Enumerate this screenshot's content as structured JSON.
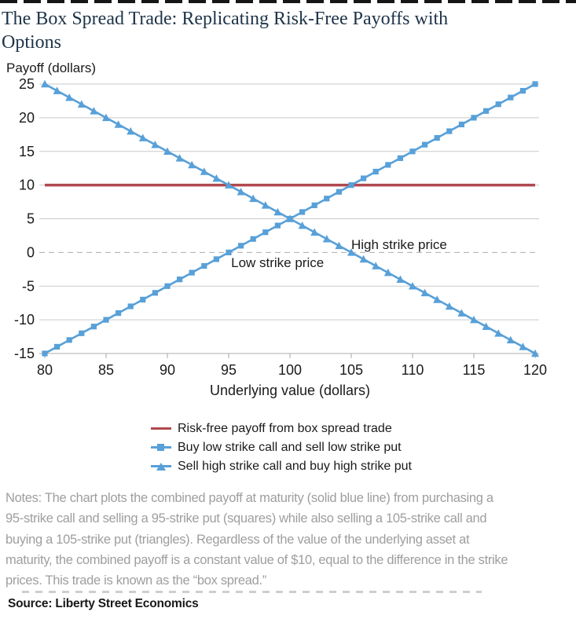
{
  "page": {
    "title_lines": [
      "The Box Spread Trade: Replicating Risk-Free Payoffs with",
      "Options"
    ]
  },
  "colors": {
    "risk_free_red": "#B0494E",
    "series_blue": "#58A0D8",
    "title_navy": "#1D3348",
    "notes_gray": "#9E9E9E",
    "grid_gray": "#C9C9C9",
    "zero_dash_gray": "#ADADAD"
  },
  "chart_data": {
    "type": "line",
    "title": "",
    "ylabel": "Payoff (dollars)",
    "xlabel": "Underlying value (dollars)",
    "xlim": [
      80,
      120
    ],
    "ylim": [
      -15,
      25
    ],
    "xticks": [
      80,
      85,
      90,
      95,
      100,
      105,
      110,
      115,
      120
    ],
    "yticks": [
      25,
      20,
      15,
      10,
      5,
      0,
      -5,
      -10,
      -15
    ],
    "grid": "horizontal gridlines; zero line dashed",
    "legend_position": "bottom",
    "x": [
      80,
      81,
      82,
      83,
      84,
      85,
      86,
      87,
      88,
      89,
      90,
      91,
      92,
      93,
      94,
      95,
      96,
      97,
      98,
      99,
      100,
      101,
      102,
      103,
      104,
      105,
      106,
      107,
      108,
      109,
      110,
      111,
      112,
      113,
      114,
      115,
      116,
      117,
      118,
      119,
      120
    ],
    "series": [
      {
        "name": "Risk-free payoff from box spread trade",
        "type": "hline",
        "value": 10,
        "color": "#B0494E"
      },
      {
        "name": "Buy low strike call and sell low strike put",
        "type": "line",
        "marker": "square",
        "color": "#58A0D8",
        "values": [
          -15,
          -14,
          -13,
          -12,
          -11,
          -10,
          -9,
          -8,
          -7,
          -6,
          -5,
          -4,
          -3,
          -2,
          -1,
          0,
          1,
          2,
          3,
          4,
          5,
          6,
          7,
          8,
          9,
          10,
          11,
          12,
          13,
          14,
          15,
          16,
          17,
          18,
          19,
          20,
          21,
          22,
          23,
          24,
          25
        ]
      },
      {
        "name": "Sell high strike call and buy high strike put",
        "type": "line",
        "marker": "triangle",
        "color": "#58A0D8",
        "values": [
          25,
          24,
          23,
          22,
          21,
          20,
          19,
          18,
          17,
          16,
          15,
          14,
          13,
          12,
          11,
          10,
          9,
          8,
          7,
          6,
          5,
          4,
          3,
          2,
          1,
          0,
          -1,
          -2,
          -3,
          -4,
          -5,
          -6,
          -7,
          -8,
          -9,
          -10,
          -11,
          -12,
          -13,
          -14,
          -15
        ]
      }
    ],
    "annotations": [
      {
        "text": "Low strike price",
        "x": 95.2,
        "y": -2.2,
        "anchor": "start"
      },
      {
        "text": "High strike price",
        "x": 105.0,
        "y": 0.5,
        "anchor": "start"
      }
    ]
  },
  "notes": {
    "lines": [
      "Notes: The chart plots the combined payoff at maturity (solid blue line) from purchasing a",
      "95-strike call and selling a 95-strike put (squares) while also selling a 105-strike call and",
      "buying a 105-strike put (triangles). Regardless of the value of the underlying asset at",
      "maturity, the combined payoff is a constant value of $10, equal to the difference in the strike",
      "prices. This trade is known as the “box spread.”"
    ]
  },
  "source": "Source: Liberty Street Economics"
}
